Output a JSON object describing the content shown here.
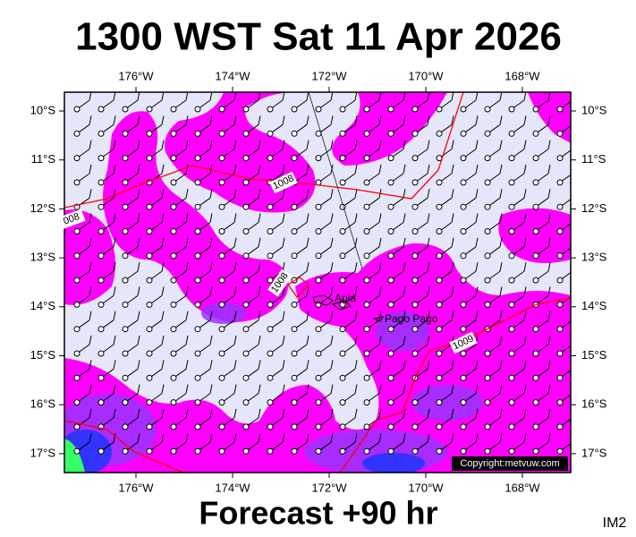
{
  "header": {
    "title": "1300 WST Sat 11 Apr 2026"
  },
  "footer": {
    "caption": "Forecast +90 hr",
    "code": "IM2"
  },
  "map": {
    "lon_ticks": [
      {
        "value": -176,
        "label": "176°W"
      },
      {
        "value": -174,
        "label": "174°W"
      },
      {
        "value": -172,
        "label": "172°W"
      },
      {
        "value": -170,
        "label": "170°W"
      },
      {
        "value": -168,
        "label": "168°W"
      }
    ],
    "lat_ticks": [
      {
        "value": -10,
        "label": "10°S"
      },
      {
        "value": -11,
        "label": "11°S"
      },
      {
        "value": -12,
        "label": "12°S"
      },
      {
        "value": -13,
        "label": "13°S"
      },
      {
        "value": -14,
        "label": "14°S"
      },
      {
        "value": -15,
        "label": "15°S"
      },
      {
        "value": -16,
        "label": "16°S"
      },
      {
        "value": -17,
        "label": "17°S"
      }
    ],
    "isobar_labels": [
      "1008",
      "008",
      "1008",
      "1009"
    ],
    "places": [
      "Apia",
      "Pago Pago"
    ],
    "copyright": "Copyright:metvuw.com"
  }
}
